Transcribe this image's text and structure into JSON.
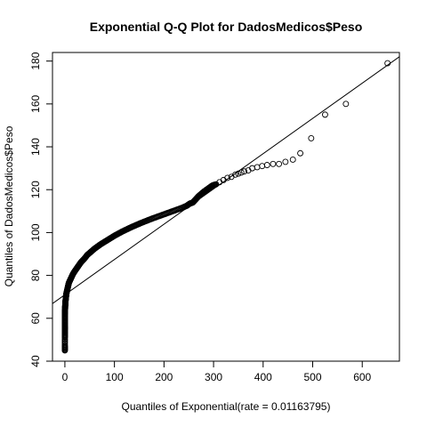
{
  "chart_data": {
    "type": "scatter",
    "title": "Exponential Q-Q Plot for DadosMedicos$Peso",
    "xlabel": "Quantiles of Exponential(rate = 0.01163795)",
    "ylabel": "Quantiles of DadosMedicos$Peso",
    "xlim": [
      -25,
      675
    ],
    "ylim": [
      40,
      184
    ],
    "xticks": [
      0,
      100,
      200,
      300,
      400,
      500,
      600
    ],
    "yticks": [
      40,
      60,
      80,
      100,
      120,
      140,
      160,
      180
    ],
    "grid": false,
    "reference_line": {
      "intercept": 71,
      "slope": 0.1645
    },
    "series": [
      {
        "marker": "open-circle",
        "x": [
          0,
          0,
          0,
          0,
          0,
          0,
          0,
          0,
          0,
          0,
          0.5,
          0.5,
          1,
          1,
          1.5,
          2,
          2.5,
          3,
          4,
          5,
          6,
          7,
          8,
          10,
          12,
          14,
          16,
          18,
          20,
          23,
          26,
          29,
          32,
          36,
          40,
          45,
          50,
          55,
          60,
          66,
          72,
          79,
          86,
          93,
          100,
          108,
          116,
          125,
          134,
          144,
          154,
          165,
          176,
          188,
          200,
          212,
          224,
          236,
          246,
          252,
          258,
          262,
          266,
          270,
          275,
          280,
          286,
          292,
          298,
          305,
          312,
          320,
          328,
          336,
          344,
          350,
          356,
          362,
          370,
          378,
          388,
          398,
          408,
          420,
          432,
          445,
          460,
          475,
          497,
          525,
          567,
          651
        ],
        "y": [
          45,
          47,
          51,
          53,
          55,
          56,
          58,
          60,
          62,
          63,
          64.5,
          65.5,
          66.5,
          67.5,
          68.5,
          69.5,
          70.5,
          71.5,
          72.5,
          73.5,
          74.5,
          75.5,
          76.5,
          77.5,
          78.5,
          79.5,
          80.5,
          81.3,
          82,
          83,
          84,
          85,
          86,
          87,
          88,
          89.5,
          90.5,
          91.5,
          92.5,
          93.5,
          94.5,
          95.5,
          96.5,
          97.5,
          98.5,
          99.5,
          100.5,
          101.5,
          102.5,
          103.5,
          104.5,
          105.5,
          106.5,
          107.5,
          108.5,
          109.5,
          110.5,
          111.5,
          112.5,
          113.5,
          114,
          115,
          116,
          117,
          118,
          119,
          120,
          121,
          122,
          122.5,
          123.5,
          124.5,
          125.5,
          126,
          127,
          127.5,
          128,
          128.5,
          129,
          130,
          130.5,
          131,
          131.5,
          132,
          132,
          133,
          134,
          137,
          144,
          155,
          160,
          179
        ]
      }
    ]
  }
}
